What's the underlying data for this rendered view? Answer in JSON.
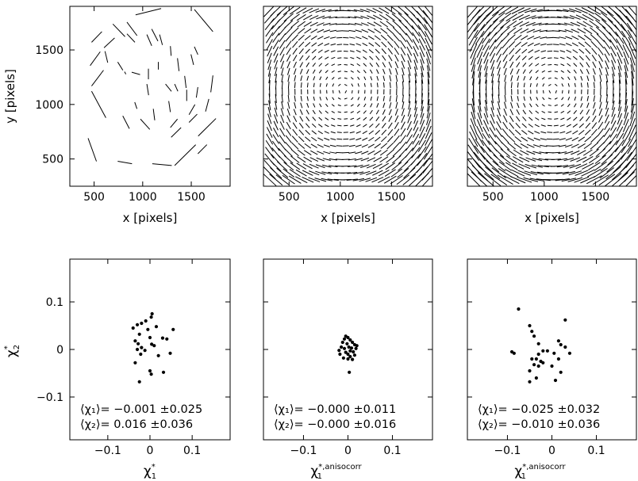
{
  "chart_data": [
    {
      "panel": "top-left",
      "type": "whisker-map",
      "xlabel": "x [pixels]",
      "ylabel": "y [pixels]",
      "xlim": [
        250,
        1900
      ],
      "ylim": [
        250,
        1900
      ],
      "xticks": [
        "500",
        "1000",
        "1500"
      ],
      "yticks": [
        "500",
        "1000",
        "1500"
      ],
      "whiskers": [
        [
          927,
          1822,
          1190,
          1880
        ],
        [
          1532,
          1871,
          1723,
          1668
        ],
        [
          1093,
          1692,
          1157,
          1581
        ],
        [
          1174,
          1641,
          1203,
          1546
        ],
        [
          838,
          1755,
          942,
          1631
        ],
        [
          693,
          1738,
          818,
          1622
        ],
        [
          838,
          1648,
          920,
          1570
        ],
        [
          1043,
          1641,
          1093,
          1538
        ],
        [
          602,
          1520,
          711,
          1610
        ],
        [
          474,
          1570,
          580,
          1668
        ],
        [
          1285,
          1535,
          1293,
          1446
        ],
        [
          1497,
          1459,
          1524,
          1363
        ],
        [
          1532,
          1530,
          1568,
          1457
        ],
        [
          612,
          1488,
          640,
          1384
        ],
        [
          459,
          1356,
          563,
          1484
        ],
        [
          474,
          1169,
          597,
          1314
        ],
        [
          743,
          1389,
          796,
          1314
        ],
        [
          1059,
          1328,
          1059,
          1231
        ],
        [
          887,
          1296,
          973,
          1274
        ],
        [
          1043,
          1187,
          1061,
          1085
        ],
        [
          1235,
          1187,
          1296,
          1120
        ],
        [
          1329,
          1187,
          1362,
          1121
        ],
        [
          1432,
          1262,
          1447,
          1152
        ],
        [
          1453,
          1135,
          1453,
          1032
        ],
        [
          1568,
          1159,
          1552,
          1063
        ],
        [
          1723,
          1266,
          1701,
          1112
        ],
        [
          1538,
          1000,
          1477,
          906
        ],
        [
          1681,
          1050,
          1647,
          935
        ],
        [
          1358,
          866,
          1285,
          788
        ],
        [
          1561,
          911,
          1477,
          835
        ],
        [
          1754,
          871,
          1571,
          710
        ],
        [
          1395,
          788,
          1293,
          699
        ],
        [
          977,
          866,
          1073,
          771
        ],
        [
          795,
          895,
          863,
          778
        ],
        [
          1109,
          960,
          1124,
          855
        ],
        [
          1268,
          1031,
          1285,
          930
        ],
        [
          918,
          1021,
          941,
          960
        ],
        [
          474,
          1121,
          621,
          878
        ],
        [
          438,
          690,
          524,
          478
        ],
        [
          743,
          479,
          890,
          456
        ],
        [
          1099,
          456,
          1299,
          440
        ],
        [
          1329,
          440,
          1546,
          631
        ],
        [
          1568,
          548,
          1661,
          631
        ],
        [
          1358,
          1424,
          1374,
          1306
        ],
        [
          813,
          1300,
          827,
          1278
        ],
        [
          1161,
          1390,
          1161,
          1320
        ]
      ]
    },
    {
      "panel": "top-middle",
      "type": "whisker-map",
      "xlabel": "x [pixels]",
      "xlim": [
        250,
        1900
      ],
      "ylim": [
        250,
        1900
      ],
      "xticks": [
        "500",
        "1000",
        "1500"
      ],
      "center": [
        1030,
        1130
      ],
      "whisker_scale": 0.00022
    },
    {
      "panel": "top-right",
      "type": "whisker-map",
      "xlabel": "x [pixels]",
      "xlim": [
        250,
        1900
      ],
      "ylim": [
        250,
        1900
      ],
      "xticks": [
        "500",
        "1000",
        "1500"
      ],
      "center": [
        1080,
        1130
      ],
      "whisker_scale": 0.0003
    },
    {
      "panel": "bottom-left",
      "type": "scatter",
      "xlabel": "χ*₁",
      "ylabel": "χ*₂",
      "xlim": [
        -0.19,
        0.19
      ],
      "ylim": [
        -0.19,
        0.19
      ],
      "xticks": [
        "−0.1",
        "0",
        "0.1"
      ],
      "yticks": [
        "−0.1",
        "0",
        "0.1"
      ],
      "annotation_lines": [
        "⟨χ₁⟩=  −0.001  ±0.025",
        "⟨χ₂⟩=  0.016  ±0.036"
      ],
      "points": [
        [
          0.005,
          0.075
        ],
        [
          0.003,
          0.068
        ],
        [
          -0.01,
          0.06
        ],
        [
          -0.02,
          0.055
        ],
        [
          -0.03,
          0.052
        ],
        [
          0.015,
          0.048
        ],
        [
          -0.04,
          0.045
        ],
        [
          -0.005,
          0.042
        ],
        [
          0.055,
          0.042
        ],
        [
          -0.025,
          0.032
        ],
        [
          0.0,
          0.025
        ],
        [
          0.03,
          0.024
        ],
        [
          0.04,
          0.022
        ],
        [
          -0.035,
          0.018
        ],
        [
          -0.028,
          0.012
        ],
        [
          0.004,
          0.011
        ],
        [
          0.01,
          0.008
        ],
        [
          -0.02,
          0.004
        ],
        [
          -0.03,
          0.0
        ],
        [
          -0.012,
          -0.002
        ],
        [
          0.048,
          -0.008
        ],
        [
          -0.022,
          -0.01
        ],
        [
          0.02,
          -0.013
        ],
        [
          -0.035,
          -0.028
        ],
        [
          0.0,
          -0.045
        ],
        [
          0.032,
          -0.048
        ],
        [
          0.003,
          -0.052
        ],
        [
          -0.025,
          -0.068
        ]
      ]
    },
    {
      "panel": "bottom-middle",
      "type": "scatter",
      "xlabel": "χ*₁,anisocorr",
      "xlim": [
        -0.19,
        0.19
      ],
      "ylim": [
        -0.19,
        0.19
      ],
      "xticks": [
        "−0.1",
        "0",
        "0.1"
      ],
      "annotation_lines": [
        "⟨χ₁⟩=  −0.000  ±0.011",
        "⟨χ₂⟩=  −0.000  ±0.016"
      ],
      "points": [
        [
          -0.005,
          0.028
        ],
        [
          0.0,
          0.025
        ],
        [
          -0.008,
          0.022
        ],
        [
          0.005,
          0.02
        ],
        [
          -0.012,
          0.015
        ],
        [
          0.01,
          0.015
        ],
        [
          0.015,
          0.01
        ],
        [
          -0.002,
          0.012
        ],
        [
          0.02,
          0.008
        ],
        [
          -0.015,
          0.005
        ],
        [
          0.002,
          0.005
        ],
        [
          0.008,
          0.003
        ],
        [
          0.018,
          0.002
        ],
        [
          -0.008,
          0.002
        ],
        [
          -0.02,
          -0.002
        ],
        [
          0.005,
          -0.003
        ],
        [
          0.012,
          -0.005
        ],
        [
          -0.005,
          -0.006
        ],
        [
          0.0,
          -0.01
        ],
        [
          -0.018,
          -0.01
        ],
        [
          0.015,
          -0.012
        ],
        [
          0.005,
          -0.015
        ],
        [
          -0.01,
          -0.018
        ],
        [
          0.0,
          -0.02
        ],
        [
          0.01,
          -0.021
        ],
        [
          0.003,
          -0.048
        ]
      ]
    },
    {
      "panel": "bottom-right",
      "type": "scatter",
      "xlabel": "χ*₁,anisocorr",
      "xlim": [
        -0.19,
        0.19
      ],
      "ylim": [
        -0.19,
        0.19
      ],
      "xticks": [
        "−0.1",
        "0",
        "0.1"
      ],
      "annotation_lines": [
        "⟨χ₁⟩=  −0.025  ±0.032",
        "⟨χ₂⟩=  −0.010  ±0.036"
      ],
      "points": [
        [
          -0.075,
          0.085
        ],
        [
          -0.05,
          0.05
        ],
        [
          0.03,
          0.062
        ],
        [
          -0.045,
          0.038
        ],
        [
          -0.04,
          0.028
        ],
        [
          0.015,
          0.018
        ],
        [
          -0.03,
          0.012
        ],
        [
          0.02,
          0.01
        ],
        [
          0.04,
          -0.008
        ],
        [
          -0.09,
          -0.005
        ],
        [
          -0.085,
          -0.008
        ],
        [
          -0.02,
          -0.003
        ],
        [
          -0.01,
          -0.003
        ],
        [
          0.005,
          -0.008
        ],
        [
          -0.03,
          -0.01
        ],
        [
          0.03,
          0.005
        ],
        [
          -0.045,
          -0.02
        ],
        [
          -0.035,
          -0.02
        ],
        [
          -0.025,
          -0.025
        ],
        [
          0.015,
          -0.02
        ],
        [
          -0.02,
          -0.028
        ],
        [
          -0.04,
          -0.032
        ],
        [
          -0.03,
          -0.035
        ],
        [
          0.0,
          -0.035
        ],
        [
          -0.05,
          -0.045
        ],
        [
          0.02,
          -0.048
        ],
        [
          -0.035,
          -0.06
        ],
        [
          -0.05,
          -0.068
        ],
        [
          0.008,
          -0.065
        ]
      ]
    }
  ]
}
